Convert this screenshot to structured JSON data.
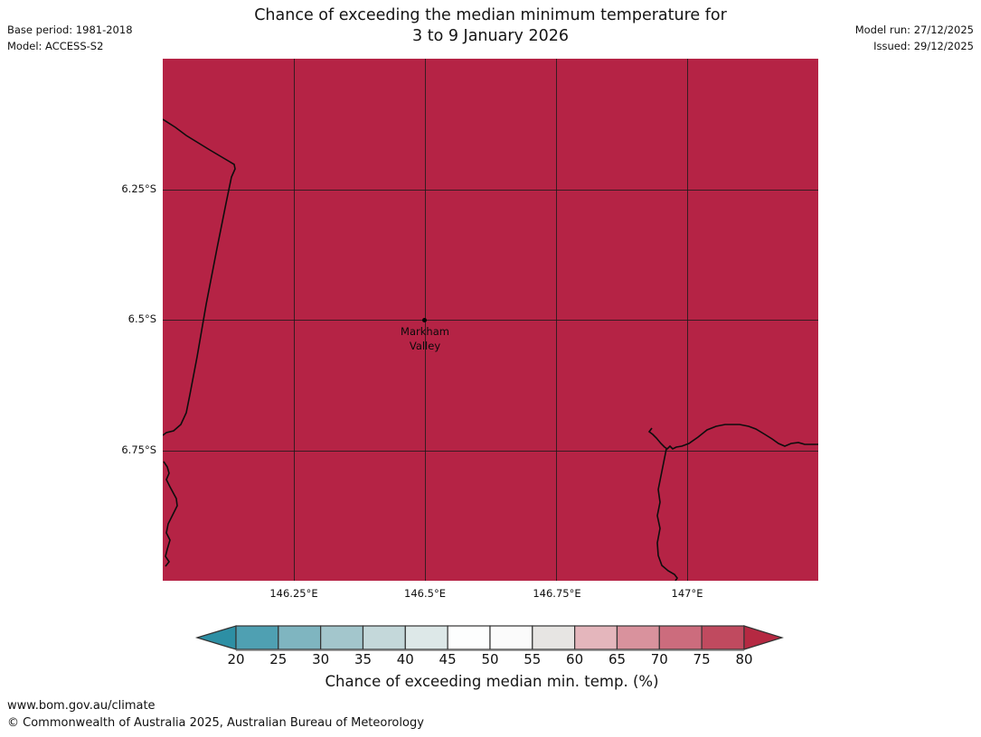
{
  "meta": {
    "base_period": "Base period: 1981-2018",
    "model": "Model: ACCESS-S2",
    "model_run": "Model run: 27/12/2025",
    "issued": "Issued: 29/12/2025"
  },
  "title": {
    "line1": "Chance of exceeding the median minimum temperature for",
    "line2": "3 to 9 January 2026"
  },
  "map": {
    "fill_color": "#b52345",
    "y_axis_labels": [
      "6.25°S",
      "6.5°S",
      "6.75°S"
    ],
    "x_axis_labels": [
      "146.25°E",
      "146.5°E",
      "146.75°E",
      "147°E"
    ],
    "marked_location": {
      "line1": "Markham",
      "line2": "Valley"
    }
  },
  "colorbar": {
    "label": "Chance of exceeding median min. temp. (%)",
    "tick_labels": [
      "20",
      "25",
      "30",
      "35",
      "40",
      "45",
      "50",
      "55",
      "60",
      "65",
      "70",
      "75",
      "80"
    ],
    "segment_colors": [
      "#4fa0b2",
      "#7fb5c0",
      "#a3c6cc",
      "#c4d8da",
      "#dde8e8",
      "#fdfefe",
      "#fbfbfb",
      "#e7e5e3",
      "#e4b6bc",
      "#d9929d",
      "#cc6c7d",
      "#c04a5f"
    ],
    "left_arrow_color": "#2d8fa4",
    "right_arrow_color": "#b52942",
    "outline_color": "#333333"
  },
  "footer": {
    "url": "www.bom.gov.au/climate",
    "copyright": "© Commonwealth of Australia 2025, Australian Bureau of Meteorology"
  },
  "chart_data": {
    "type": "heatmap",
    "title": "Chance of exceeding the median minimum temperature for 3 to 9 January 2026",
    "legend_label": "Chance of exceeding median min. temp. (%)",
    "colorbar_ticks": [
      20,
      25,
      30,
      35,
      40,
      45,
      50,
      55,
      60,
      65,
      70,
      75,
      80
    ],
    "colorbar_range_open_ended": true,
    "map_extent": {
      "lon_e": [
        146.0,
        147.25
      ],
      "lat_s": [
        6.0,
        7.0
      ]
    },
    "x_ticks_lon_e": [
      146.25,
      146.5,
      146.75,
      147.0
    ],
    "y_ticks_lat_s": [
      6.25,
      6.5,
      6.75
    ],
    "depicted_value": "entire visible region exceeds top bin (> 80%)",
    "marked_location": {
      "name": "Markham Valley",
      "lon_e": 146.5,
      "lat_s": 6.5
    }
  }
}
